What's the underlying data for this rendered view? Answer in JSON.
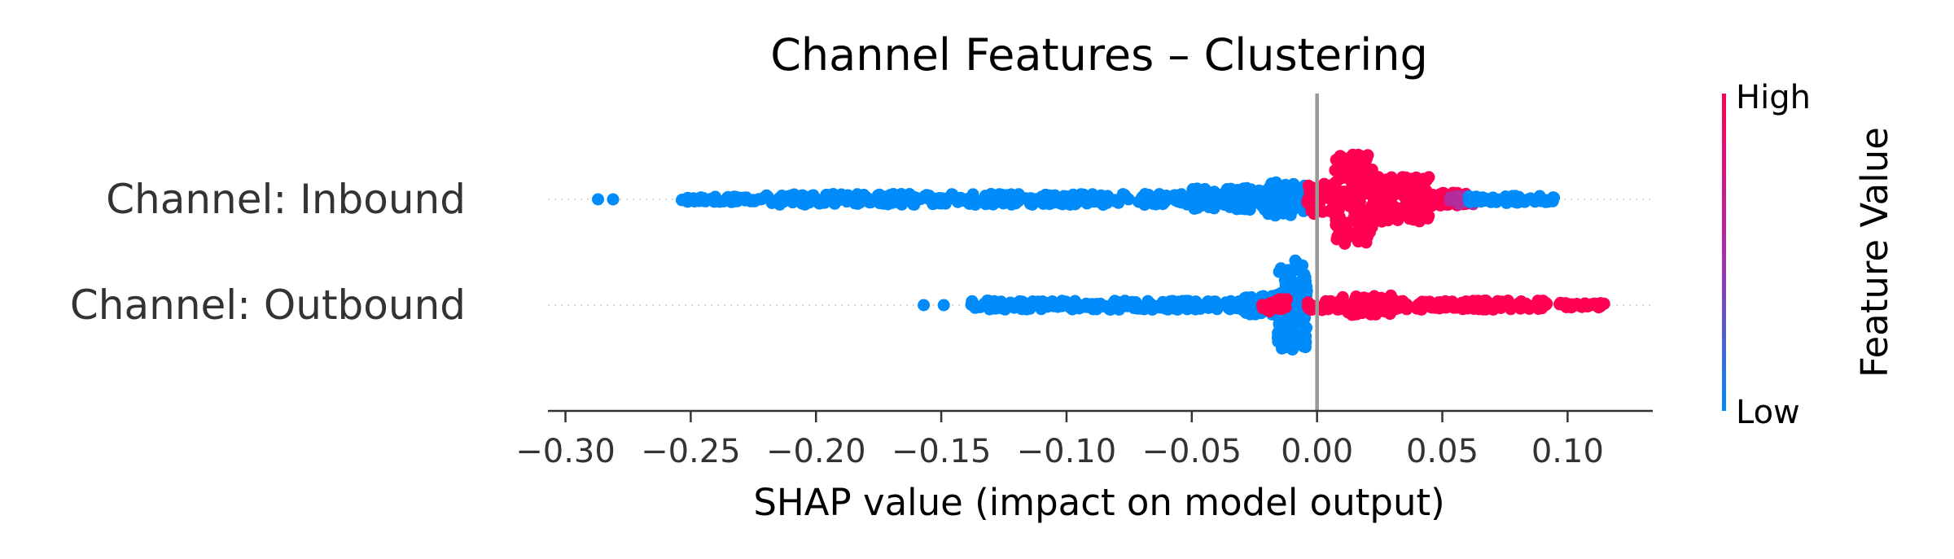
{
  "chart_data": {
    "type": "scatter",
    "subtype": "shap-beeswarm",
    "title": "Channel Features – Clustering",
    "xlabel": "SHAP value (impact on model output)",
    "xlim": [
      -0.307,
      0.134
    ],
    "x_ticks": [
      -0.3,
      -0.25,
      -0.2,
      -0.15,
      -0.1,
      -0.05,
      0.0,
      0.05,
      0.1
    ],
    "x_tick_labels": [
      "−0.30",
      "−0.25",
      "−0.20",
      "−0.15",
      "−0.10",
      "−0.05",
      "0.00",
      "0.05",
      "0.10"
    ],
    "zero_line": 0.0,
    "features": [
      {
        "name": "Channel: Inbound",
        "segments": [
          {
            "x_from": -0.287,
            "x_to": -0.287,
            "density": 0.0,
            "color": "#008bfb"
          },
          {
            "x_from": -0.281,
            "x_to": -0.281,
            "density": 0.0,
            "color": "#008bfb"
          },
          {
            "x_from": -0.254,
            "x_to": -0.222,
            "density": 0.06,
            "color": "#008bfb"
          },
          {
            "x_from": -0.222,
            "x_to": -0.05,
            "density": 0.12,
            "color": "#008bfb"
          },
          {
            "x_from": -0.05,
            "x_to": -0.02,
            "density": 0.25,
            "color": "#008bfb"
          },
          {
            "x_from": -0.02,
            "x_to": -0.004,
            "density": 0.38,
            "color": "#008bfb"
          },
          {
            "x_from": -0.004,
            "x_to": 0.007,
            "density": 0.35,
            "color": "#ff0052"
          },
          {
            "x_from": 0.007,
            "x_to": 0.022,
            "density": 1.0,
            "color": "#ff0052"
          },
          {
            "x_from": 0.022,
            "x_to": 0.045,
            "density": 0.5,
            "color": "#ff0052"
          },
          {
            "x_from": 0.045,
            "x_to": 0.06,
            "density": 0.15,
            "color": "#ff0052"
          },
          {
            "x_from": 0.053,
            "x_to": 0.063,
            "density": 0.12,
            "color": "#b22c9e"
          },
          {
            "x_from": 0.06,
            "x_to": 0.095,
            "density": 0.08,
            "color": "#008bfb"
          }
        ]
      },
      {
        "name": "Channel: Outbound",
        "segments": [
          {
            "x_from": -0.157,
            "x_to": -0.157,
            "density": 0.0,
            "color": "#008bfb"
          },
          {
            "x_from": -0.149,
            "x_to": -0.149,
            "density": 0.0,
            "color": "#008bfb"
          },
          {
            "x_from": -0.138,
            "x_to": -0.03,
            "density": 0.1,
            "color": "#008bfb"
          },
          {
            "x_from": -0.03,
            "x_to": -0.016,
            "density": 0.22,
            "color": "#008bfb"
          },
          {
            "x_from": -0.016,
            "x_to": -0.004,
            "density": 1.0,
            "color": "#008bfb"
          },
          {
            "x_from": -0.022,
            "x_to": -0.012,
            "density": 0.15,
            "color": "#ff0052"
          },
          {
            "x_from": -0.004,
            "x_to": 0.01,
            "density": 0.12,
            "color": "#ff0052"
          },
          {
            "x_from": 0.01,
            "x_to": 0.03,
            "density": 0.22,
            "color": "#ff0052"
          },
          {
            "x_from": 0.03,
            "x_to": 0.093,
            "density": 0.1,
            "color": "#ff0052"
          },
          {
            "x_from": 0.096,
            "x_to": 0.115,
            "density": 0.05,
            "color": "#ff0052"
          }
        ]
      }
    ],
    "colorbar": {
      "label": "Feature Value",
      "high_label": "High",
      "low_label": "Low",
      "high_color": "#ff0052",
      "low_color": "#008bfb"
    },
    "grid": false,
    "legend": "colorbar-right"
  }
}
